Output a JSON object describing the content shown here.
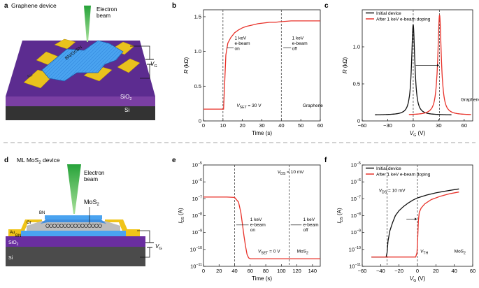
{
  "panels": {
    "a": {
      "letter": "a",
      "title": "Graphene device",
      "beam": "Electron\nbeam",
      "layer_stack": "BN/Gr/BN",
      "electrode": "Au",
      "gate": "V",
      "gate_sub": "G",
      "sio2": "SiO",
      "sio2_sub": "2",
      "si": "Si"
    },
    "d": {
      "letter": "d",
      "title_pre": "ML MoS",
      "title_sub": "2",
      "title_post": " device",
      "beam": "Electron\nbeam",
      "mos2": "MoS",
      "mos2_sub": "2",
      "bn_top": "BN",
      "gr": "Gr",
      "au": "Au",
      "bn_bot": "BN",
      "sio2": "SiO",
      "sio2_sub": "2",
      "si": "Si",
      "gate": "V",
      "gate_sub": "G"
    },
    "b": {
      "letter": "b"
    },
    "c": {
      "letter": "c"
    },
    "e": {
      "letter": "e"
    },
    "f": {
      "letter": "f"
    }
  },
  "chart_data": [
    {
      "id": "b",
      "type": "line",
      "xlabel": "Time (s)",
      "ylabel_pre": "R",
      "ylabel_post": " (kΩ)",
      "xlim": [
        0,
        60
      ],
      "ylim": [
        0,
        1.6
      ],
      "xticks": [
        0,
        10,
        20,
        30,
        40,
        50,
        60
      ],
      "yticks": [
        0,
        0.5,
        1.0,
        1.5
      ],
      "ytick_labels": [
        "0",
        "0.5",
        "1.0",
        "1.5"
      ],
      "vlines": [
        10,
        40
      ],
      "series": [
        {
          "color": "#e8322a",
          "x": [
            0,
            10.3,
            10.8,
            11.5,
            12.5,
            14,
            16,
            18,
            20,
            22,
            25,
            28,
            31,
            34,
            37,
            40,
            40.5,
            45,
            50,
            55,
            60
          ],
          "y": [
            0.17,
            0.17,
            0.5,
            0.95,
            1.12,
            1.2,
            1.27,
            1.31,
            1.34,
            1.36,
            1.38,
            1.4,
            1.41,
            1.42,
            1.42,
            1.43,
            1.43,
            1.44,
            1.44,
            1.44,
            1.44
          ]
        }
      ],
      "annotations": [
        {
          "text": "1 keV\ne-beam\non",
          "x": 16,
          "y": 1.17
        },
        {
          "text": "1 keV\ne-beam\noff",
          "x": 45.5,
          "y": 1.17
        },
        {
          "text": "Graphene",
          "x": 51,
          "y": 0.2
        }
      ],
      "vset": {
        "pre": "V",
        "sub": "SET",
        "post": " = 30 V"
      }
    },
    {
      "id": "c",
      "type": "line",
      "xlabel_pre": "V",
      "xlabel_sub": "G",
      "xlabel_post": " (V)",
      "ylabel_pre": "R",
      "ylabel_post": " (kΩ)",
      "xlim": [
        -60,
        70
      ],
      "ylim": [
        0,
        1.5
      ],
      "xticks": [
        -60,
        -30,
        0,
        30,
        60
      ],
      "xtick_labels": [
        "−60",
        "−30",
        "0",
        "30",
        "60"
      ],
      "yticks": [
        0,
        0.5,
        1.0
      ],
      "ytick_labels": [
        "0",
        "0.5",
        "1.0"
      ],
      "vlines": [
        0,
        31
      ],
      "legend": [
        "Initial device",
        "After 1 keV e-beam doping"
      ],
      "series": [
        {
          "name": "Initial device",
          "color": "#111111",
          "peak": 0,
          "width": 2.3,
          "height": 1.22,
          "base": 0.08,
          "range": [
            -45,
            45
          ]
        },
        {
          "name": "After 1 keV e-beam doping",
          "color": "#e8322a",
          "peak": 31,
          "width": 2.5,
          "height": 1.35,
          "base": 0.08,
          "range": [
            -5,
            68
          ]
        }
      ],
      "annotations": [
        {
          "text": "Graphene",
          "x": 56,
          "y": 0.27
        }
      ]
    },
    {
      "id": "e",
      "type": "line",
      "xlabel": "Time (s)",
      "ylabel_pre": "I",
      "ylabel_sub": "DS",
      "ylabel_post": " (A)",
      "xlim": [
        0,
        150
      ],
      "ylog": [
        -11,
        -5
      ],
      "xticks": [
        0,
        20,
        40,
        60,
        80,
        100,
        120,
        140
      ],
      "yticks_exp": [
        -11,
        -10,
        -9,
        -8,
        -7,
        -6,
        -5
      ],
      "vlines": [
        40,
        110
      ],
      "series": [
        {
          "color": "#e8322a",
          "x": [
            0,
            10,
            20,
            30,
            40,
            45,
            48,
            50,
            52,
            54,
            56,
            58,
            60,
            70,
            80,
            100,
            120,
            140,
            150
          ],
          "log10y": [
            -6.9,
            -6.9,
            -6.9,
            -6.9,
            -6.92,
            -7.2,
            -7.8,
            -8.5,
            -9.2,
            -9.8,
            -10.3,
            -10.5,
            -10.55,
            -10.55,
            -10.55,
            -10.55,
            -10.55,
            -10.55,
            -10.55
          ]
        }
      ],
      "annotations": [
        {
          "text": "1 keV\ne-beam\non",
          "x": 60,
          "log10y": -8.3
        },
        {
          "text": "1 keV\ne-beam\noff",
          "x": 128,
          "log10y": -8.3
        }
      ],
      "vds": {
        "pre": "V",
        "sub": "DS",
        "post": " = 10 mV"
      },
      "vset": {
        "pre": "V",
        "sub": "SET",
        "post": " = 0 V"
      },
      "material": {
        "pre": "MoS",
        "sub": "2"
      }
    },
    {
      "id": "f",
      "type": "line",
      "xlabel_pre": "V",
      "xlabel_sub": "G",
      "xlabel_post": " (V)",
      "ylabel_pre": "I",
      "ylabel_sub": "DS",
      "ylabel_post": " (A)",
      "xlim": [
        -60,
        60
      ],
      "ylog": [
        -11,
        -5
      ],
      "xticks": [
        -60,
        -40,
        -20,
        0,
        20,
        40,
        60
      ],
      "xtick_labels": [
        "−60",
        "−40",
        "−20",
        "0",
        "20",
        "40",
        "60"
      ],
      "yticks_exp": [
        -11,
        -10,
        -9,
        -8,
        -7,
        -6,
        -5
      ],
      "vlines": [
        -33,
        0
      ],
      "legend": [
        "Initial device",
        "After 1 keV e-beam doping"
      ],
      "series": [
        {
          "name": "Initial device",
          "color": "#111111",
          "x": [
            -50,
            -40,
            -34,
            -33,
            -32,
            -30,
            -27,
            -24,
            -20,
            -15,
            -10,
            -5,
            0,
            10,
            20,
            30,
            40,
            45
          ],
          "log10y": [
            -10.45,
            -10.45,
            -10.45,
            -10.2,
            -9.5,
            -8.9,
            -8.4,
            -8.0,
            -7.7,
            -7.45,
            -7.25,
            -7.08,
            -6.95,
            -6.78,
            -6.65,
            -6.55,
            -6.46,
            -6.42
          ]
        },
        {
          "name": "After 1 keV e-beam doping",
          "color": "#e8322a",
          "x": [
            -50,
            -20,
            -10,
            -2,
            -0.5,
            0.2,
            1,
            2,
            4,
            8,
            15,
            25,
            35,
            45
          ],
          "log10y": [
            -10.45,
            -10.45,
            -10.45,
            -10.45,
            -10.2,
            -9.4,
            -8.3,
            -7.8,
            -7.55,
            -7.3,
            -7.05,
            -6.85,
            -6.7,
            -6.6
          ]
        }
      ],
      "vds": {
        "pre": "V",
        "sub": "DS",
        "post": " = 10 mV"
      },
      "vth": {
        "pre": "V",
        "sub": "TH"
      },
      "material": {
        "pre": "MoS",
        "sub": "2"
      }
    }
  ]
}
